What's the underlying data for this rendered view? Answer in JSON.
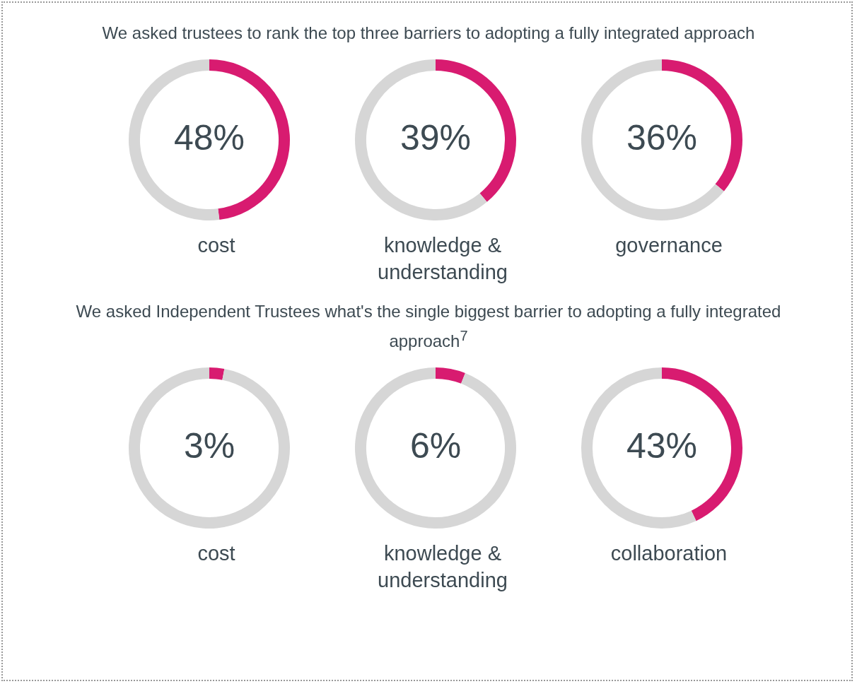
{
  "chart_data": [
    {
      "type": "donut",
      "annotations": [
        "We asked trustees to rank the top three barriers to adopting a fully integrated approach"
      ],
      "title": "cost",
      "categories": [
        null,
        null
      ],
      "values": [
        48,
        52
      ],
      "colors": [
        "#d81b70",
        "#d6d6d6"
      ],
      "value_labels": [
        "48%",
        null
      ]
    },
    {
      "type": "donut",
      "title": "knowledge & understanding",
      "categories": [
        null,
        null
      ],
      "values": [
        39,
        61
      ],
      "colors": [
        "#d81b70",
        "#d6d6d6"
      ],
      "value_labels": [
        "39%",
        null
      ]
    },
    {
      "type": "donut",
      "title": "governance",
      "categories": [
        null,
        null
      ],
      "values": [
        36,
        64
      ],
      "colors": [
        "#d81b70",
        "#d6d6d6"
      ],
      "value_labels": [
        "36%",
        null
      ]
    },
    {
      "type": "donut",
      "annotations": [
        "We asked Independent Trustees what's the single biggest barrier to adopting a fully integrated approach$^{7}$"
      ],
      "title": "cost",
      "categories": [
        null,
        null
      ],
      "values": [
        3,
        97
      ],
      "colors": [
        "#d81b70",
        "#d6d6d6"
      ],
      "value_labels": [
        "3%",
        null
      ]
    },
    {
      "type": "donut",
      "title": "knowledge & understanding",
      "categories": [
        null,
        null
      ],
      "values": [
        6,
        94
      ],
      "colors": [
        "#d81b70",
        "#d6d6d6"
      ],
      "value_labels": [
        "6%",
        null
      ]
    },
    {
      "type": "donut",
      "title": "collaboration",
      "categories": [
        null,
        null
      ],
      "values": [
        43,
        57
      ],
      "colors": [
        "#d81b70",
        "#d6d6d6"
      ],
      "value_labels": [
        "43%",
        null
      ]
    }
  ]
}
